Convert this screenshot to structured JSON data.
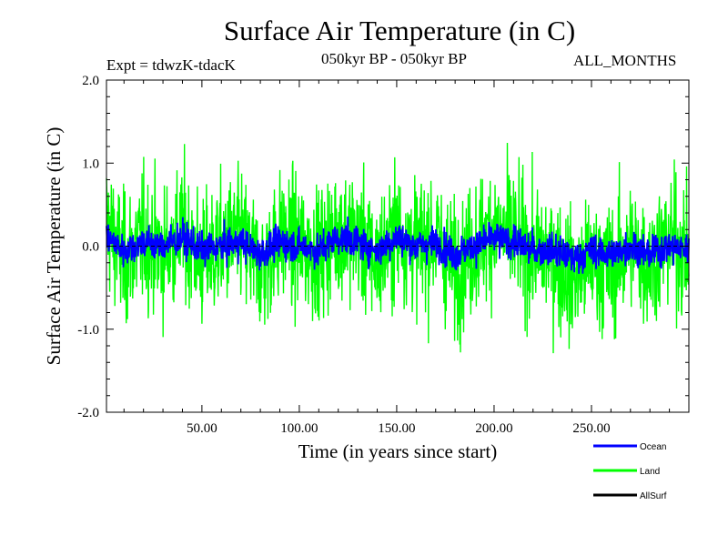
{
  "chart_data": {
    "type": "line",
    "title": "Surface Air Temperature (in C)",
    "subtitle": "050kyr BP - 050kyr BP",
    "experiment_label": "Expt = tdwzK-tdacK",
    "months_label": "ALL_MONTHS",
    "xlabel": "Time (in years since start)",
    "ylabel": "Surface Air Temperature (in C)",
    "xlim": [
      1,
      300
    ],
    "ylim": [
      -2.0,
      2.0
    ],
    "x_ticks": [
      50,
      100,
      150,
      200,
      250
    ],
    "x_tick_labels": [
      "50.00",
      "100.00",
      "150.00",
      "200.00",
      "250.00"
    ],
    "y_ticks": [
      -2.0,
      -1.0,
      0.0,
      1.0,
      2.0
    ],
    "y_tick_labels": [
      "-2.0",
      "-1.0",
      "0.0",
      "1.0",
      "2.0"
    ],
    "reference_line_y": 0.0,
    "grid": false,
    "legend_position": "bottom-right, below plot",
    "series": [
      {
        "name": "Ocean",
        "color": "#0000ff",
        "x": [
          1,
          10,
          20,
          30,
          40,
          50,
          60,
          70,
          80,
          90,
          100,
          110,
          120,
          130,
          140,
          150,
          160,
          170,
          180,
          190,
          200,
          210,
          220,
          230,
          240,
          250,
          260,
          270,
          280,
          290,
          300
        ],
        "values": [
          0.1,
          -0.05,
          0.05,
          0.0,
          0.1,
          -0.05,
          0.0,
          0.05,
          -0.1,
          0.05,
          0.0,
          -0.05,
          0.1,
          0.05,
          -0.05,
          0.1,
          0.0,
          0.05,
          -0.1,
          0.0,
          0.1,
          0.05,
          -0.05,
          -0.05,
          -0.15,
          -0.05,
          -0.1,
          0.0,
          -0.1,
          0.0,
          -0.05
        ]
      },
      {
        "name": "Land",
        "color": "#00ff00",
        "x": [
          1,
          10,
          20,
          30,
          40,
          50,
          60,
          70,
          80,
          90,
          100,
          110,
          120,
          130,
          140,
          150,
          160,
          170,
          180,
          190,
          200,
          210,
          220,
          230,
          240,
          250,
          260,
          270,
          280,
          290,
          300
        ],
        "values": [
          0.3,
          -0.2,
          0.1,
          -0.1,
          0.2,
          -0.2,
          0.0,
          0.1,
          -0.3,
          0.1,
          0.0,
          -0.1,
          0.2,
          0.1,
          -0.2,
          0.2,
          0.0,
          0.1,
          -0.3,
          0.0,
          0.2,
          0.1,
          -0.1,
          -0.1,
          -0.4,
          -0.2,
          -0.3,
          0.0,
          -0.2,
          0.1,
          -0.1
        ]
      },
      {
        "name": "AllSurf",
        "color": "#000000",
        "x": [],
        "values": []
      }
    ]
  }
}
